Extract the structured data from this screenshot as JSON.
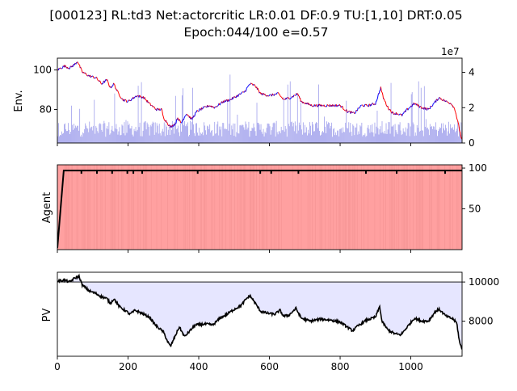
{
  "chart_data": {
    "type": "line",
    "title_line1": "[000123] RL:td3 Net:actorcritic LR:0.01 DF:0.9 TU:[1,10] DRT:0.05",
    "title_line2": "Epoch:044/100 e=0.57",
    "xlim": [
      0,
      1145
    ],
    "x_ticks": [
      0,
      200,
      400,
      600,
      800,
      1000
    ],
    "panels": [
      {
        "ylabel": "Env.",
        "left_ylim": [
          63,
          106
        ],
        "left_ticks": [
          80,
          100
        ],
        "right_ylim": [
          0,
          4.8
        ],
        "right_ticks": [
          0,
          2,
          4
        ],
        "right_offset_label": "1e7",
        "series": [
          {
            "type": "line",
            "color_up": "#0000ff",
            "color_down": "#ff0000",
            "keypoints": [
              [
                0,
                100
              ],
              [
                20,
                102
              ],
              [
                35,
                101
              ],
              [
                50,
                103
              ],
              [
                57,
                104.5
              ],
              [
                70,
                99
              ],
              [
                90,
                97
              ],
              [
                110,
                96
              ],
              [
                125,
                93
              ],
              [
                140,
                95
              ],
              [
                150,
                91
              ],
              [
                160,
                93
              ],
              [
                170,
                89
              ],
              [
                185,
                85
              ],
              [
                200,
                84
              ],
              [
                225,
                87
              ],
              [
                245,
                86
              ],
              [
                260,
                83
              ],
              [
                280,
                80
              ],
              [
                295,
                80
              ],
              [
                300,
                76
              ],
              [
                320,
                71
              ],
              [
                335,
                73
              ],
              [
                340,
                76
              ],
              [
                350,
                73
              ],
              [
                365,
                78
              ],
              [
                380,
                75
              ],
              [
                395,
                79
              ],
              [
                405,
                80
              ],
              [
                430,
                82
              ],
              [
                445,
                81
              ],
              [
                470,
                84
              ],
              [
                490,
                85
              ],
              [
                510,
                87
              ],
              [
                530,
                89
              ],
              [
                545,
                93
              ],
              [
                560,
                92
              ],
              [
                575,
                88
              ],
              [
                600,
                87
              ],
              [
                625,
                88
              ],
              [
                640,
                85
              ],
              [
                660,
                86
              ],
              [
                680,
                88
              ],
              [
                690,
                84
              ],
              [
                720,
                82
              ],
              [
                760,
                82
              ],
              [
                800,
                82
              ],
              [
                820,
                79
              ],
              [
                840,
                78
              ],
              [
                860,
                82
              ],
              [
                880,
                82
              ],
              [
                900,
                83
              ],
              [
                915,
                91
              ],
              [
                922,
                86
              ],
              [
                935,
                81
              ],
              [
                950,
                78
              ],
              [
                960,
                78
              ],
              [
                975,
                77
              ],
              [
                990,
                80
              ],
              [
                1010,
                83
              ],
              [
                1030,
                81
              ],
              [
                1050,
                80
              ],
              [
                1070,
                84
              ],
              [
                1080,
                86
              ],
              [
                1100,
                84
              ],
              [
                1115,
                83
              ],
              [
                1125,
                80
              ],
              [
                1135,
                72
              ],
              [
                1145,
                64
              ]
            ]
          }
        ],
        "volume_color": "#aaaaee"
      },
      {
        "ylabel": "Agent",
        "left_ylim": [
          0,
          104
        ],
        "left_ticks": [],
        "right_ticks": [
          50,
          100
        ],
        "background_color": "#ffa0a0",
        "series": [
          {
            "type": "line",
            "color": "#000000",
            "keypoints": [
              [
                0,
                2
              ],
              [
                18,
                97
              ],
              [
                1145,
                97
              ]
            ]
          }
        ],
        "dip_markers_x": [
          68,
          112,
          155,
          198,
          215,
          240,
          397,
          574,
          605,
          682,
          873,
          960,
          1097
        ]
      },
      {
        "ylabel": "PV",
        "left_ylim": [
          6200,
          10500
        ],
        "left_ticks": [],
        "right_ticks": [
          8000,
          10000
        ],
        "baseline": 10000,
        "fill_color": "#e6e6ff",
        "series": [
          {
            "type": "line",
            "color": "#000000",
            "keypoints": [
              [
                0,
                10050
              ],
              [
                20,
                10100
              ],
              [
                35,
                10000
              ],
              [
                45,
                10150
              ],
              [
                55,
                10250
              ],
              [
                62,
                10280
              ],
              [
                70,
                9850
              ],
              [
                90,
                9550
              ],
              [
                110,
                9400
              ],
              [
                125,
                9250
              ],
              [
                140,
                9150
              ],
              [
                150,
                8900
              ],
              [
                160,
                9150
              ],
              [
                175,
                8750
              ],
              [
                195,
                8500
              ],
              [
                205,
                8350
              ],
              [
                220,
                8550
              ],
              [
                245,
                8350
              ],
              [
                260,
                8200
              ],
              [
                280,
                7750
              ],
              [
                300,
                7450
              ],
              [
                312,
                6950
              ],
              [
                320,
                6700
              ],
              [
                335,
                7300
              ],
              [
                345,
                7700
              ],
              [
                360,
                7200
              ],
              [
                375,
                7500
              ],
              [
                390,
                7800
              ],
              [
                420,
                7850
              ],
              [
                440,
                7800
              ],
              [
                460,
                8150
              ],
              [
                480,
                8350
              ],
              [
                500,
                8600
              ],
              [
                520,
                8800
              ],
              [
                535,
                9150
              ],
              [
                545,
                9300
              ],
              [
                555,
                9050
              ],
              [
                575,
                8500
              ],
              [
                595,
                8400
              ],
              [
                615,
                8350
              ],
              [
                630,
                8550
              ],
              [
                640,
                8250
              ],
              [
                655,
                8300
              ],
              [
                675,
                8650
              ],
              [
                690,
                8150
              ],
              [
                715,
                8000
              ],
              [
                745,
                8100
              ],
              [
                775,
                8050
              ],
              [
                800,
                7950
              ],
              [
                820,
                7700
              ],
              [
                835,
                7500
              ],
              [
                850,
                7750
              ],
              [
                875,
                8050
              ],
              [
                900,
                8200
              ],
              [
                912,
                8750
              ],
              [
                918,
                8000
              ],
              [
                935,
                7550
              ],
              [
                955,
                7350
              ],
              [
                972,
                7300
              ],
              [
                990,
                7700
              ],
              [
                1010,
                8150
              ],
              [
                1030,
                8000
              ],
              [
                1050,
                8000
              ],
              [
                1070,
                8500
              ],
              [
                1080,
                8600
              ],
              [
                1100,
                8250
              ],
              [
                1120,
                8100
              ],
              [
                1130,
                7900
              ],
              [
                1138,
                6900
              ],
              [
                1145,
                6550
              ]
            ]
          }
        ]
      }
    ]
  }
}
